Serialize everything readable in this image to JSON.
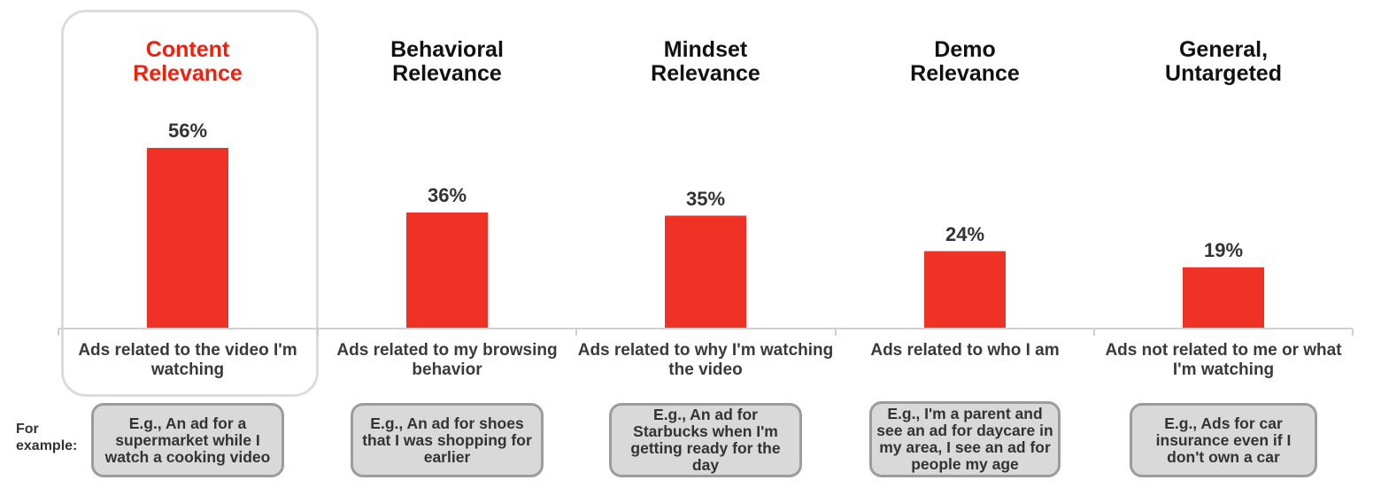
{
  "example_label": "For\nexample:",
  "colors": {
    "bar": "#f03226",
    "highlight_title": "#f0200f",
    "title": "#111111"
  },
  "chart_data": {
    "type": "bar",
    "title": "",
    "xlabel": "",
    "ylabel": "",
    "ylim": [
      0,
      60
    ],
    "grid": false,
    "highlight_index": 0,
    "categories": [
      "Content\nRelevance",
      "Behavioral\nRelevance",
      "Mindset\nRelevance",
      "Demo\nRelevance",
      "General,\nUntargeted"
    ],
    "values": [
      56,
      36,
      35,
      24,
      19
    ],
    "value_labels": [
      "56%",
      "36%",
      "35%",
      "24%",
      "19%"
    ],
    "descriptions": [
      "Ads related to the video I'm watching",
      "Ads related to my browsing behavior",
      "Ads related to why I'm watching the video",
      "Ads related to who I am",
      "Ads not related to me or what I'm watching"
    ],
    "examples": [
      "E.g., An ad for a supermarket while I watch a cooking video",
      "E.g., An ad for shoes that I was shopping for earlier",
      "E.g., An ad for Starbucks when I'm getting ready for the day",
      "E.g., I'm a parent and see an ad for daycare in my area, I see an ad for people my age",
      "E.g., Ads for car insurance even if I don't own a car"
    ]
  }
}
